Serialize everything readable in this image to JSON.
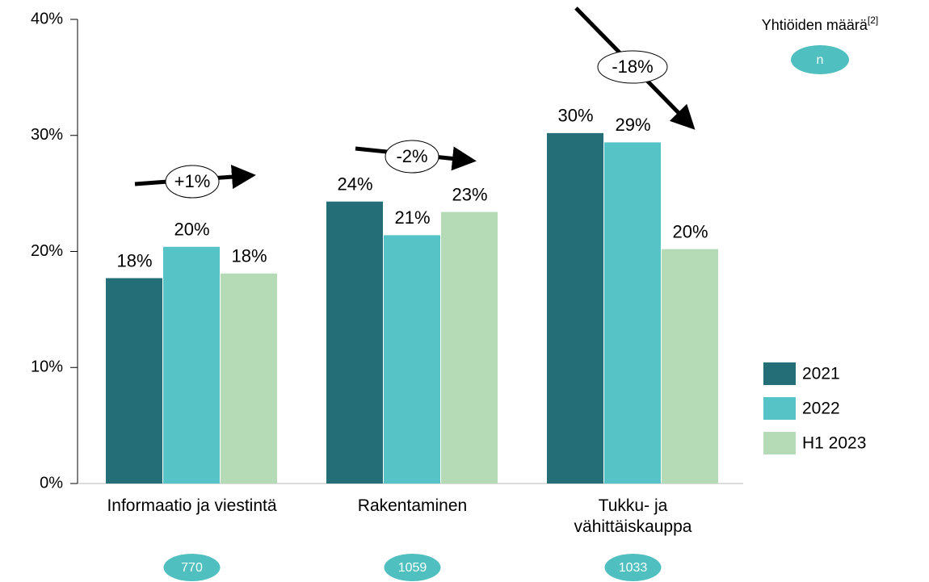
{
  "chart_data": {
    "type": "bar",
    "categories": [
      "Informaatio ja viestintä",
      "Rakentaminen",
      "Tukku- ja\nvähittäiskauppa"
    ],
    "series": [
      {
        "name": "2021",
        "color": "#246e78",
        "values": [
          17.7,
          24.3,
          30.2
        ],
        "value_labels": [
          "18%",
          "24%",
          "30%"
        ]
      },
      {
        "name": "2022",
        "color": "#56c3c6",
        "values": [
          20.4,
          21.4,
          29.4
        ],
        "value_labels": [
          "20%",
          "21%",
          "29%"
        ]
      },
      {
        "name": "H1 2023",
        "color": "#b5dbb6",
        "values": [
          18.1,
          23.4,
          20.2
        ],
        "value_labels": [
          "18%",
          "23%",
          "20%"
        ]
      }
    ],
    "ylim": [
      0,
      40
    ],
    "yticks": [
      {
        "value": 0,
        "label": "0%"
      },
      {
        "value": 10,
        "label": "10%"
      },
      {
        "value": 20,
        "label": "20%"
      },
      {
        "value": 30,
        "label": "30%"
      },
      {
        "value": 40,
        "label": "40%"
      }
    ],
    "grid": false,
    "legend": "right",
    "annotations": [
      "+1%",
      "-2%",
      "-18%"
    ],
    "counts": [
      770,
      1059,
      1033
    ],
    "count_label": "Yhtiöiden määrä",
    "count_label_note": "[2]",
    "count_symbol": "n",
    "count_color": "#4fbfbf"
  }
}
